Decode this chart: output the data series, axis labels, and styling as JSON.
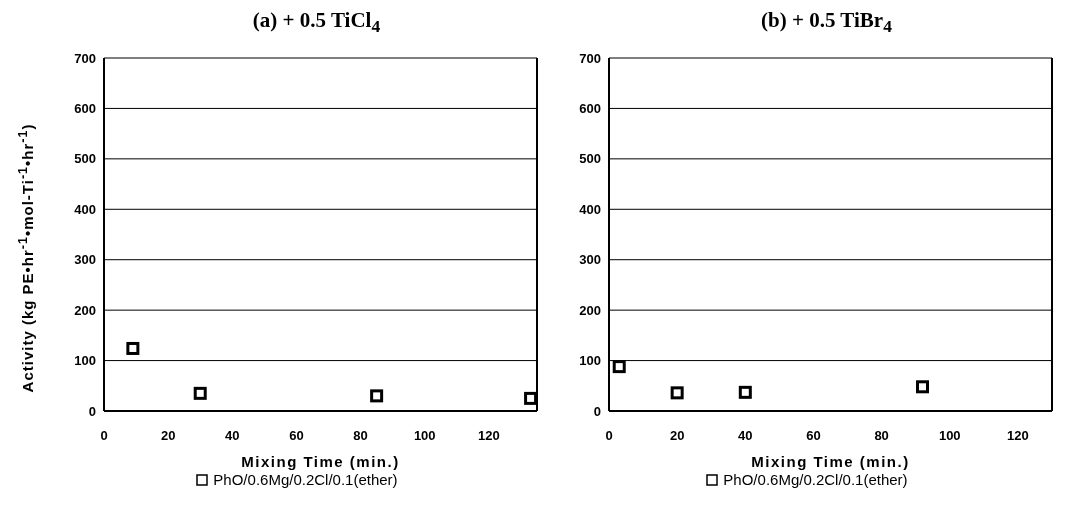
{
  "chart_data": [
    {
      "type": "scatter",
      "title": "(a)  + 0.5 TiCl$_{4}$",
      "xlabel": "Mixing Time (min.)",
      "ylabel": "Activity (kg PE•hr$^{-1}$•mol-Ti$^{-1}$•hr$^{-1}$)",
      "series": [
        {
          "name": "PhO/0.6Mg/0.2Cl/0.1(ether)",
          "color": "#000000",
          "x": [
            9,
            30,
            85,
            133
          ],
          "values": [
            124,
            35,
            30,
            25
          ]
        }
      ],
      "xlim": [
        0,
        135
      ],
      "xticks": [
        0,
        20,
        40,
        60,
        80,
        100,
        120
      ],
      "ylim": [
        0,
        700
      ],
      "yticks": [
        0,
        100,
        200,
        300,
        400,
        500,
        600,
        700
      ],
      "grid": "y",
      "legend": "bottom",
      "marker": "square"
    },
    {
      "type": "scatter",
      "title": "(b)   + 0.5 TiBr$_{4}$",
      "xlabel": "Mixing Time (min.)",
      "series": [
        {
          "name": "PhO/0.6Mg/0.2Cl/0.1(ether)",
          "color": "#000000",
          "x": [
            3,
            20,
            40,
            92
          ],
          "values": [
            88,
            36,
            37,
            48
          ]
        }
      ],
      "xlim": [
        0,
        130
      ],
      "xticks": [
        0,
        20,
        40,
        60,
        80,
        100,
        120
      ],
      "ylim": [
        0,
        700
      ],
      "yticks": [
        0,
        100,
        200,
        300,
        400,
        500,
        600,
        700
      ],
      "grid": "y",
      "legend": "bottom",
      "marker": "square"
    }
  ]
}
